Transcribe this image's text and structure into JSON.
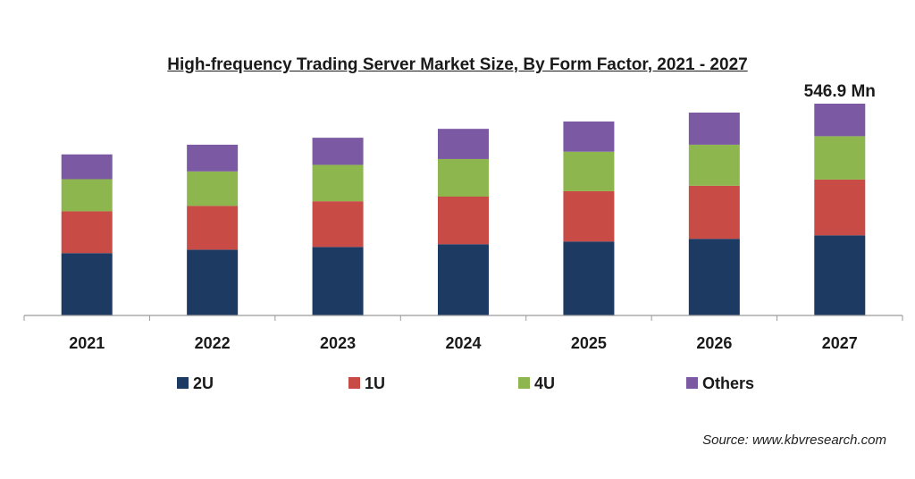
{
  "chart_data": {
    "type": "bar",
    "stacked": true,
    "title": "High-frequency Trading Server Market Size, By Form Factor, 2021 - 2027",
    "categories": [
      "2021",
      "2022",
      "2023",
      "2024",
      "2025",
      "2026",
      "2027"
    ],
    "series": [
      {
        "name": "2U",
        "color": "#1d3a63",
        "values": [
          161,
          170,
          177,
          184,
          191,
          198,
          207
        ]
      },
      {
        "name": "1U",
        "color": "#c84b46",
        "values": [
          108,
          113,
          118,
          123,
          130,
          137,
          144
        ]
      },
      {
        "name": "4U",
        "color": "#8db64f",
        "values": [
          83,
          89,
          94,
          97,
          102,
          106,
          112
        ]
      },
      {
        "name": "Others",
        "color": "#7b5aa3",
        "values": [
          64,
          69,
          70,
          78,
          78,
          83,
          84
        ]
      }
    ],
    "annotations": [
      {
        "category": "2027",
        "text": "546.9 Mn"
      }
    ],
    "ylim": [
      0,
      547
    ],
    "xlabel": "",
    "ylabel": "",
    "legend_position": "bottom",
    "grid": false
  },
  "source_text": "Source: www.kbvresearch.com"
}
